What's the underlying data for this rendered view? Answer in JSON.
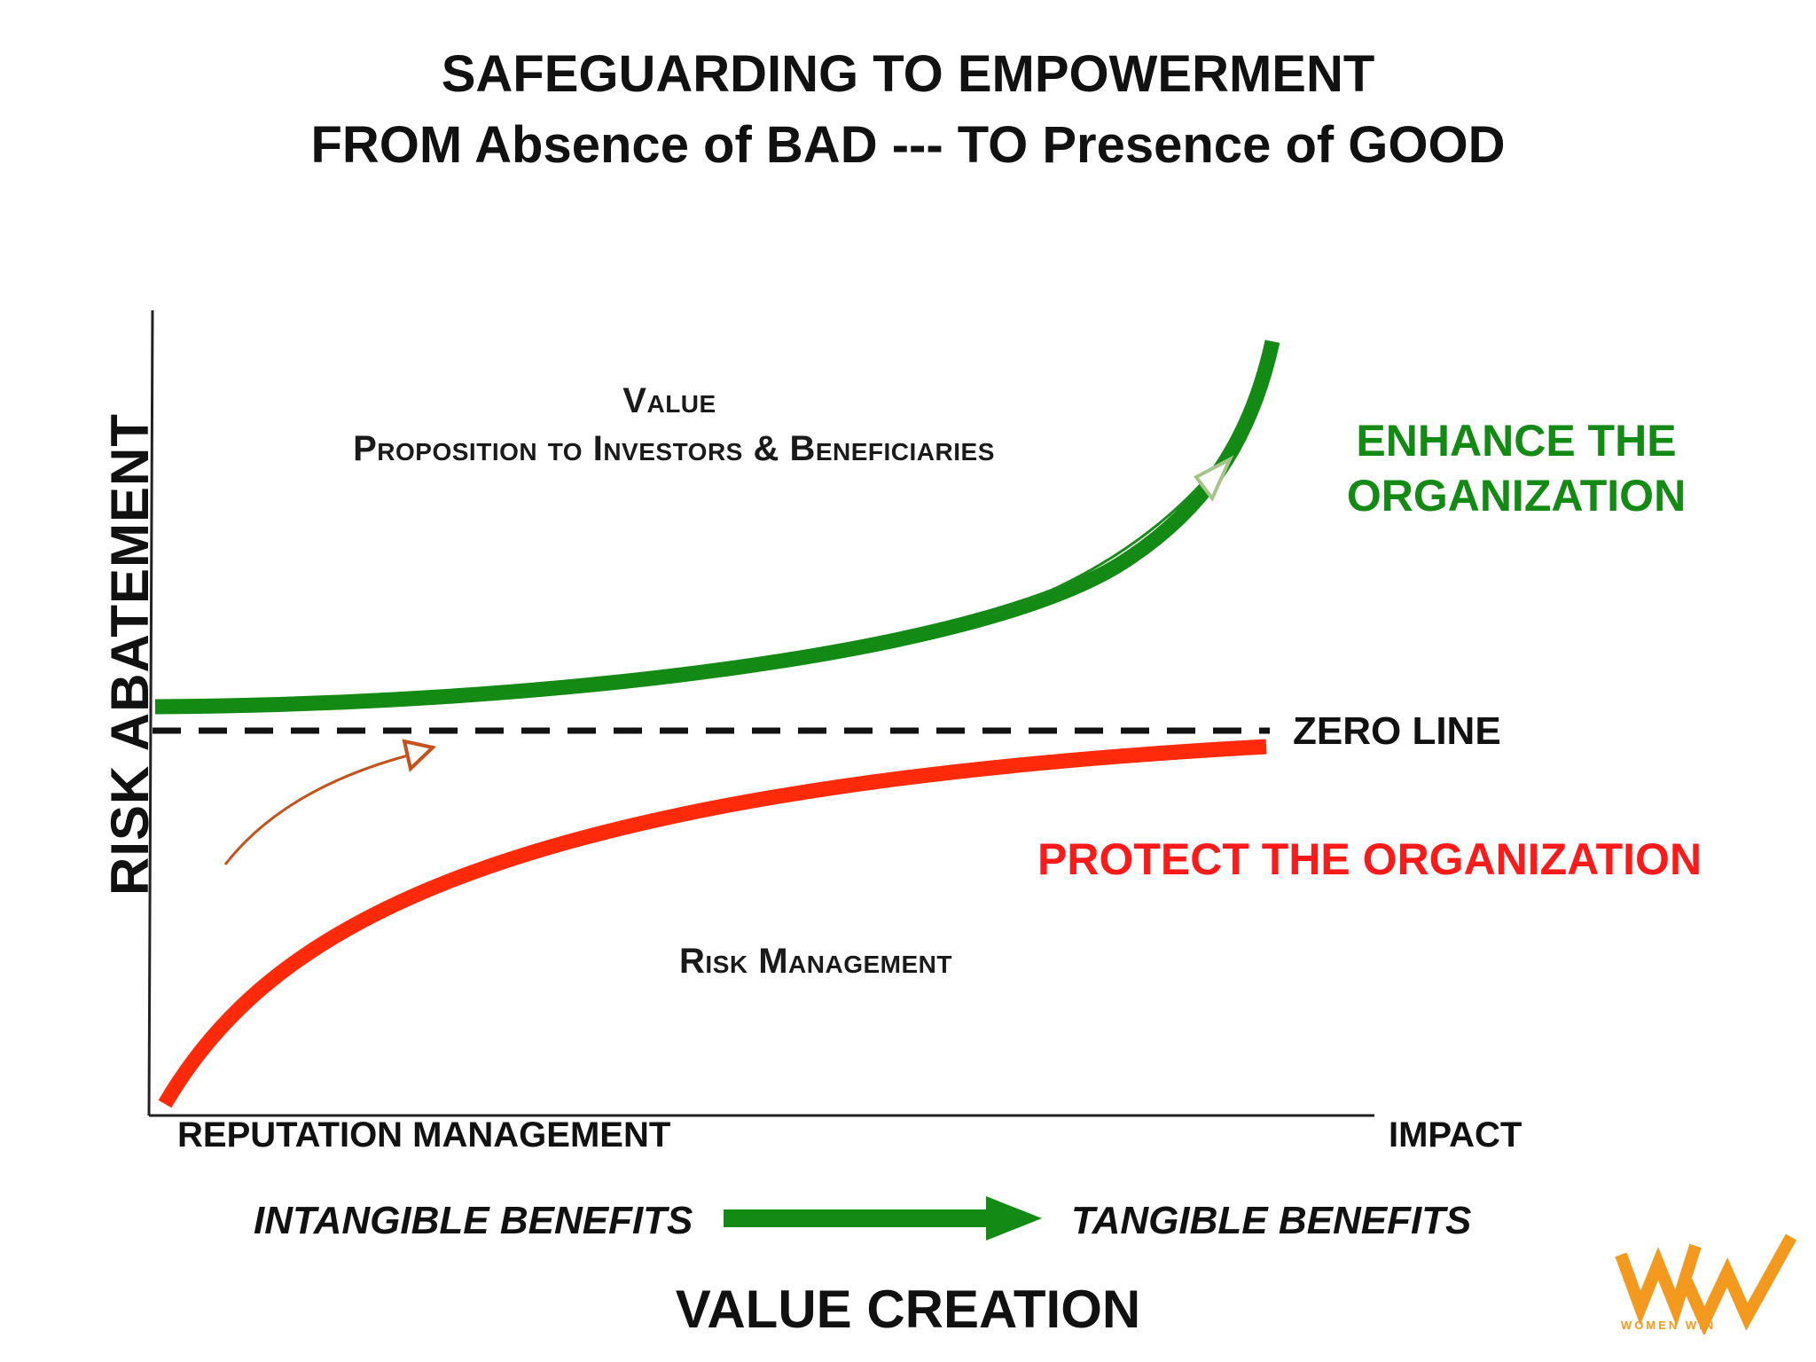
{
  "title": {
    "line1": "SAFEGUARDING TO EMPOWERMENT",
    "line2": "FROM Absence of BAD --- TO Presence of GOOD"
  },
  "axes": {
    "y_label": "RISK ABATEMENT",
    "x_label": "VALUE CREATION",
    "x_left_label": "REPUTATION MANAGEMENT",
    "x_right_label": "IMPACT"
  },
  "upper_region": {
    "line1": "Value",
    "line2": "Proposition to Investors &  Beneficiaries"
  },
  "lower_region": {
    "label": "Risk Management"
  },
  "curves": {
    "enhance": {
      "line1": "ENHANCE THE",
      "line2": "ORGANIZATION",
      "color": "#138a13"
    },
    "protect": {
      "label": "PROTECT THE ORGANIZATION",
      "color": "#ff2a0a"
    }
  },
  "zero_line": {
    "label": "ZERO LINE"
  },
  "benefits": {
    "left": "INTANGIBLE BENEFITS",
    "right": "TANGIBLE BENEFITS",
    "arrow_color": "#138a13"
  },
  "logo": {
    "text": "WOMEN WIN",
    "color": "#f39a1e"
  }
}
